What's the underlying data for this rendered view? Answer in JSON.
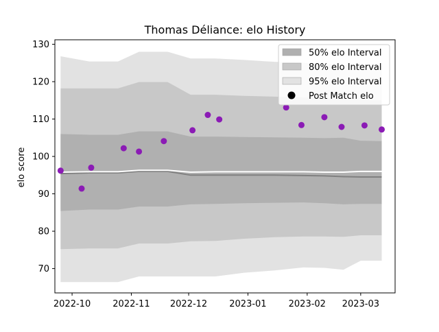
{
  "chart_data": {
    "type": "area",
    "title": "Thomas Déliance: elo History",
    "xlabel": "",
    "ylabel": "elo score",
    "xlim": [
      "2022-09-22",
      "2023-03-19"
    ],
    "ylim": [
      63.5,
      131.2
    ],
    "x_ticks": [
      {
        "date": "2022-10-01",
        "label": "2022-10"
      },
      {
        "date": "2022-11-01",
        "label": "2022-11"
      },
      {
        "date": "2022-12-01",
        "label": "2022-12"
      },
      {
        "date": "2023-01-01",
        "label": "2023-01"
      },
      {
        "date": "2023-02-01",
        "label": "2023-02"
      },
      {
        "date": "2023-03-01",
        "label": "2023-03"
      }
    ],
    "y_ticks": [
      70,
      80,
      90,
      100,
      110,
      120,
      130
    ],
    "grid": false,
    "legend_position": "top-right",
    "legend": [
      {
        "label": "50% elo Interval",
        "kind": "patch",
        "color": "#b0b0b0"
      },
      {
        "label": "80% elo Interval",
        "kind": "patch",
        "color": "#c8c8c8"
      },
      {
        "label": "95% elo Interval",
        "kind": "patch",
        "color": "#e2e2e2"
      },
      {
        "label": "Post Match elo",
        "kind": "marker",
        "color": "#000000"
      }
    ],
    "band_dates": [
      "2022-09-25",
      "2022-10-10",
      "2022-10-25",
      "2022-11-05",
      "2022-11-20",
      "2022-12-02",
      "2022-12-15",
      "2022-12-30",
      "2023-01-15",
      "2023-01-30",
      "2023-02-10",
      "2023-02-20",
      "2023-03-01",
      "2023-03-12"
    ],
    "bands": [
      {
        "name": "95% elo Interval",
        "color": "#e2e2e2",
        "upper": [
          126.8,
          125.4,
          125.4,
          128.0,
          128.0,
          126.2,
          126.2,
          125.8,
          125.3,
          125.0,
          124.7,
          124.5,
          124.3,
          124.2
        ],
        "lower": [
          66.4,
          66.4,
          66.4,
          67.9,
          67.9,
          67.9,
          67.9,
          68.9,
          69.5,
          70.3,
          70.2,
          69.7,
          72.1,
          72.1
        ]
      },
      {
        "name": "80% elo Interval",
        "color": "#c8c8c8",
        "upper": [
          118.2,
          118.2,
          118.2,
          119.9,
          119.9,
          116.5,
          116.5,
          116.2,
          116.0,
          115.8,
          115.5,
          115.3,
          115.1,
          115.0
        ],
        "lower": [
          75.2,
          75.4,
          75.4,
          76.7,
          76.7,
          77.3,
          77.4,
          78.0,
          78.4,
          78.6,
          78.6,
          78.5,
          78.9,
          78.9
        ]
      },
      {
        "name": "50% elo Interval",
        "color": "#b0b0b0",
        "upper": [
          106.0,
          105.8,
          105.8,
          106.7,
          106.7,
          105.3,
          105.3,
          105.2,
          105.1,
          105.0,
          104.9,
          105.0,
          104.2,
          104.1
        ],
        "lower": [
          85.4,
          85.8,
          85.8,
          86.6,
          86.6,
          87.2,
          87.3,
          87.5,
          87.6,
          87.7,
          87.5,
          87.2,
          87.3,
          87.3
        ]
      }
    ],
    "mean_line": {
      "color": "#808080",
      "values": [
        95.4,
        95.6,
        95.6,
        96.0,
        96.0,
        95.0,
        95.0,
        95.0,
        95.0,
        94.9,
        94.8,
        94.6,
        94.5,
        94.5
      ]
    },
    "median_line": {
      "color": "#ffffff",
      "values": [
        95.8,
        95.9,
        95.9,
        96.3,
        96.3,
        95.8,
        95.9,
        95.9,
        95.9,
        95.9,
        95.8,
        95.8,
        96.0,
        96.0
      ]
    },
    "points_color": "#8b1bb5",
    "points": [
      {
        "x": "2022-09-25",
        "y": 96.2
      },
      {
        "x": "2022-10-06",
        "y": 91.4
      },
      {
        "x": "2022-10-11",
        "y": 97.0
      },
      {
        "x": "2022-10-28",
        "y": 102.2
      },
      {
        "x": "2022-11-05",
        "y": 101.3
      },
      {
        "x": "2022-11-18",
        "y": 104.1
      },
      {
        "x": "2022-12-03",
        "y": 107.0
      },
      {
        "x": "2022-12-11",
        "y": 111.1
      },
      {
        "x": "2022-12-17",
        "y": 109.9
      },
      {
        "x": "2023-01-21",
        "y": 113.1
      },
      {
        "x": "2023-01-29",
        "y": 108.4
      },
      {
        "x": "2023-02-10",
        "y": 110.5
      },
      {
        "x": "2023-02-19",
        "y": 107.9
      },
      {
        "x": "2023-03-03",
        "y": 108.3
      },
      {
        "x": "2023-03-12",
        "y": 107.2
      }
    ]
  }
}
